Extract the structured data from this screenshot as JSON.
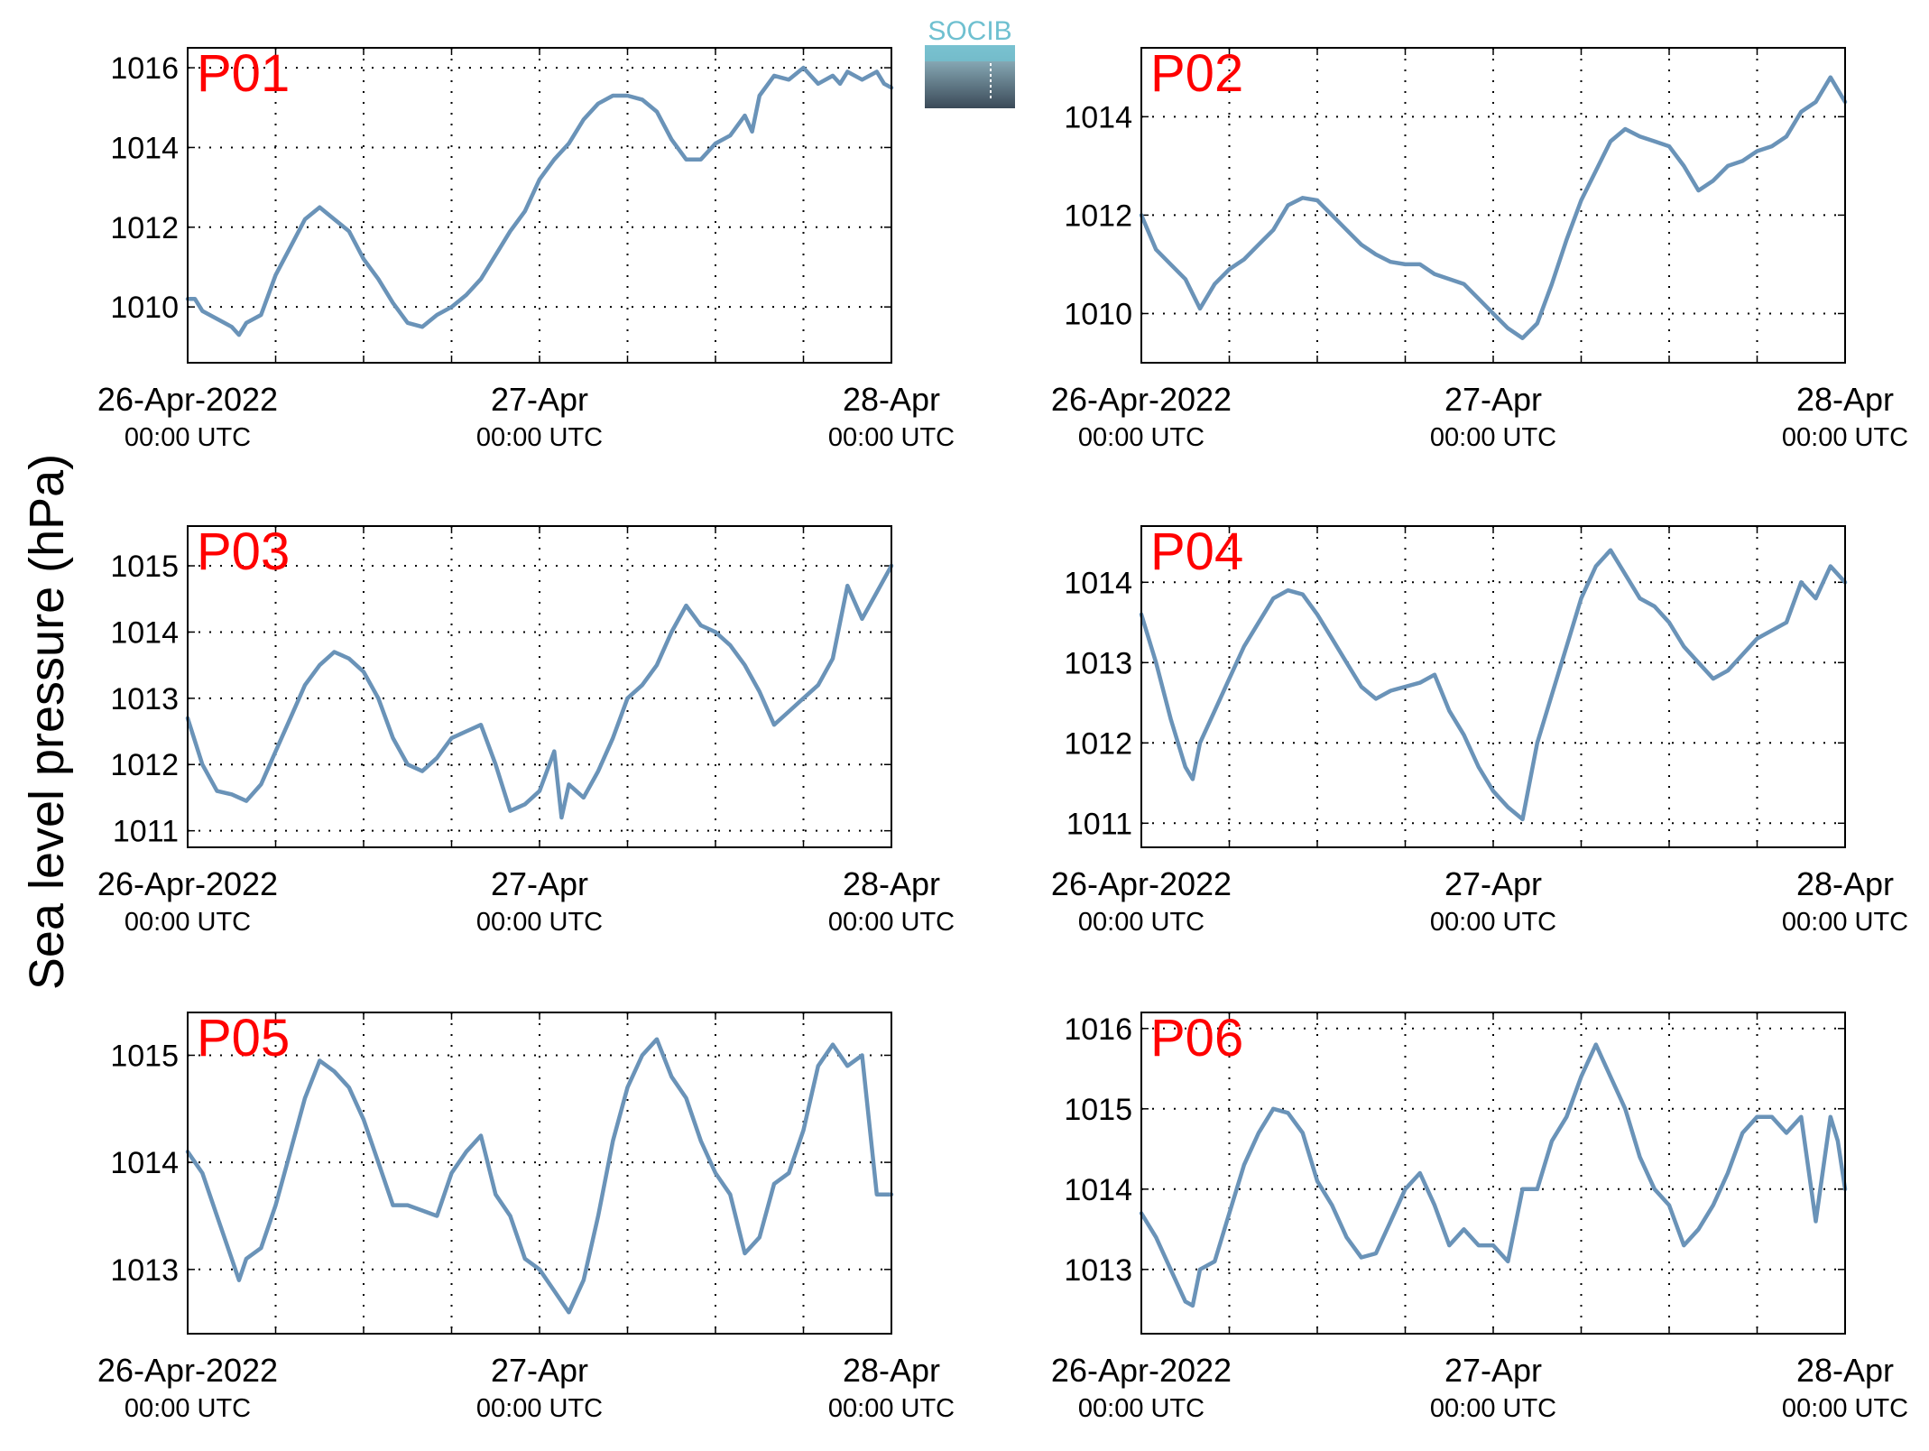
{
  "figure": {
    "ylabel": "Sea level pressure (hPa)",
    "logo_text": "SOCIB",
    "line_color": "#6a93b8",
    "label_color": "#ff0000"
  },
  "chart_data": [
    {
      "type": "line",
      "title": "P01",
      "x_ticks": [
        {
          "line1": "26-Apr-2022",
          "line2": "00:00 UTC"
        },
        {
          "line1": "27-Apr",
          "line2": "00:00 UTC"
        },
        {
          "line1": "28-Apr",
          "line2": "00:00 UTC"
        }
      ],
      "x_unit": "hours since first tick",
      "xlim": [
        0,
        48
      ],
      "ylim": [
        1008.6,
        1016.5
      ],
      "yticks": [
        1010,
        1012,
        1014,
        1016
      ],
      "grid": true,
      "series": [
        {
          "x": [
            0,
            0.5,
            1,
            2,
            3,
            3.5,
            4,
            5,
            6,
            7,
            8,
            9,
            10,
            11,
            12,
            13,
            14,
            15,
            16,
            17,
            18,
            19,
            20,
            21,
            22,
            23,
            24,
            25,
            26,
            27,
            28,
            29,
            30,
            31,
            32,
            33,
            34,
            35,
            36,
            37,
            38,
            38.5,
            39,
            40,
            41,
            42,
            43,
            44,
            44.5,
            45,
            46,
            47,
            47.5,
            48
          ],
          "y": [
            1010.2,
            1010.2,
            1009.9,
            1009.7,
            1009.5,
            1009.3,
            1009.6,
            1009.8,
            1010.8,
            1011.5,
            1012.2,
            1012.5,
            1012.2,
            1011.9,
            1011.2,
            1010.7,
            1010.1,
            1009.6,
            1009.5,
            1009.8,
            1010.0,
            1010.3,
            1010.7,
            1011.3,
            1011.9,
            1012.4,
            1013.2,
            1013.7,
            1014.1,
            1014.7,
            1015.1,
            1015.3,
            1015.3,
            1015.2,
            1014.9,
            1014.2,
            1013.7,
            1013.7,
            1014.1,
            1014.3,
            1014.8,
            1014.4,
            1015.3,
            1015.8,
            1015.7,
            1016.0,
            1015.6,
            1015.8,
            1015.6,
            1015.9,
            1015.7,
            1015.9,
            1015.6,
            1015.5
          ]
        }
      ]
    },
    {
      "type": "line",
      "title": "P02",
      "x_ticks": [
        {
          "line1": "26-Apr-2022",
          "line2": "00:00 UTC"
        },
        {
          "line1": "27-Apr",
          "line2": "00:00 UTC"
        },
        {
          "line1": "28-Apr",
          "line2": "00:00 UTC"
        }
      ],
      "x_unit": "hours since first tick",
      "xlim": [
        0,
        48
      ],
      "ylim": [
        1009.0,
        1015.4
      ],
      "yticks": [
        1010,
        1012,
        1014
      ],
      "grid": true,
      "series": [
        {
          "x": [
            0,
            1,
            2,
            3,
            4,
            5,
            6,
            7,
            8,
            9,
            10,
            11,
            12,
            13,
            14,
            15,
            16,
            17,
            18,
            19,
            20,
            21,
            22,
            23,
            24,
            25,
            26,
            27,
            28,
            29,
            30,
            31,
            32,
            33,
            34,
            35,
            36,
            37,
            38,
            39,
            40,
            41,
            42,
            43,
            44,
            45,
            46,
            47,
            48
          ],
          "y": [
            1012.0,
            1011.3,
            1011.0,
            1010.7,
            1010.1,
            1010.6,
            1010.9,
            1011.1,
            1011.4,
            1011.7,
            1012.2,
            1012.35,
            1012.3,
            1012.0,
            1011.7,
            1011.4,
            1011.2,
            1011.05,
            1011.0,
            1011.0,
            1010.8,
            1010.7,
            1010.6,
            1010.3,
            1010.0,
            1009.7,
            1009.5,
            1009.8,
            1010.6,
            1011.5,
            1012.3,
            1012.9,
            1013.5,
            1013.75,
            1013.6,
            1013.5,
            1013.4,
            1013.0,
            1012.5,
            1012.7,
            1013.0,
            1013.1,
            1013.3,
            1013.4,
            1013.6,
            1014.1,
            1014.3,
            1014.8,
            1014.3
          ]
        }
      ]
    },
    {
      "type": "line",
      "title": "P03",
      "x_ticks": [
        {
          "line1": "26-Apr-2022",
          "line2": "00:00 UTC"
        },
        {
          "line1": "27-Apr",
          "line2": "00:00 UTC"
        },
        {
          "line1": "28-Apr",
          "line2": "00:00 UTC"
        }
      ],
      "x_unit": "hours since first tick",
      "xlim": [
        0,
        48
      ],
      "ylim": [
        1010.75,
        1015.6
      ],
      "yticks": [
        1011,
        1012,
        1013,
        1014,
        1015
      ],
      "grid": true,
      "series": [
        {
          "x": [
            0,
            1,
            2,
            3,
            4,
            5,
            6,
            7,
            8,
            9,
            10,
            11,
            12,
            13,
            14,
            15,
            16,
            17,
            18,
            19,
            20,
            21,
            22,
            23,
            24,
            25,
            25.5,
            26,
            27,
            28,
            29,
            30,
            31,
            32,
            33,
            34,
            35,
            36,
            37,
            38,
            39,
            40,
            41,
            42,
            43,
            44,
            45,
            46,
            47,
            48
          ],
          "y": [
            1012.7,
            1012.0,
            1011.6,
            1011.55,
            1011.45,
            1011.7,
            1012.2,
            1012.7,
            1013.2,
            1013.5,
            1013.7,
            1013.6,
            1013.4,
            1013.0,
            1012.4,
            1012.0,
            1011.9,
            1012.1,
            1012.4,
            1012.5,
            1012.6,
            1012.0,
            1011.3,
            1011.4,
            1011.6,
            1012.2,
            1011.2,
            1011.7,
            1011.5,
            1011.9,
            1012.4,
            1013.0,
            1013.2,
            1013.5,
            1014.0,
            1014.4,
            1014.1,
            1014.0,
            1013.8,
            1013.5,
            1013.1,
            1012.6,
            1012.8,
            1013.0,
            1013.2,
            1013.6,
            1014.7,
            1014.2,
            1014.6,
            1015.0
          ]
        }
      ]
    },
    {
      "type": "line",
      "title": "P04",
      "x_ticks": [
        {
          "line1": "26-Apr-2022",
          "line2": "00:00 UTC"
        },
        {
          "line1": "27-Apr",
          "line2": "00:00 UTC"
        },
        {
          "line1": "28-Apr",
          "line2": "00:00 UTC"
        }
      ],
      "x_unit": "hours since first tick",
      "xlim": [
        0,
        48
      ],
      "ylim": [
        1010.7,
        1014.7
      ],
      "yticks": [
        1011,
        1012,
        1013,
        1014
      ],
      "grid": true,
      "series": [
        {
          "x": [
            0,
            1,
            2,
            3,
            3.5,
            4,
            5,
            6,
            7,
            8,
            9,
            10,
            11,
            12,
            13,
            14,
            15,
            16,
            17,
            18,
            19,
            20,
            21,
            22,
            23,
            24,
            25,
            26,
            27,
            28,
            29,
            30,
            31,
            32,
            33,
            34,
            35,
            36,
            37,
            38,
            39,
            40,
            41,
            42,
            43,
            44,
            45,
            46,
            47,
            48
          ],
          "y": [
            1013.6,
            1013.0,
            1012.3,
            1011.7,
            1011.55,
            1012.0,
            1012.4,
            1012.8,
            1013.2,
            1013.5,
            1013.8,
            1013.9,
            1013.85,
            1013.6,
            1013.3,
            1013.0,
            1012.7,
            1012.55,
            1012.65,
            1012.7,
            1012.75,
            1012.85,
            1012.4,
            1012.1,
            1011.7,
            1011.4,
            1011.2,
            1011.05,
            1012.0,
            1012.6,
            1013.2,
            1013.8,
            1014.2,
            1014.4,
            1014.1,
            1013.8,
            1013.7,
            1013.5,
            1013.2,
            1013.0,
            1012.8,
            1012.9,
            1013.1,
            1013.3,
            1013.4,
            1013.5,
            1014.0,
            1013.8,
            1014.2,
            1014.0
          ]
        }
      ]
    },
    {
      "type": "line",
      "title": "P05",
      "x_ticks": [
        {
          "line1": "26-Apr-2022",
          "line2": "00:00 UTC"
        },
        {
          "line1": "27-Apr",
          "line2": "00:00 UTC"
        },
        {
          "line1": "28-Apr",
          "line2": "00:00 UTC"
        }
      ],
      "x_unit": "hours since first tick",
      "xlim": [
        0,
        48
      ],
      "ylim": [
        1012.4,
        1015.4
      ],
      "yticks": [
        1013,
        1014,
        1015
      ],
      "grid": true,
      "series": [
        {
          "x": [
            0,
            1,
            2,
            3,
            3.5,
            4,
            5,
            6,
            7,
            8,
            9,
            10,
            11,
            12,
            13,
            14,
            15,
            16,
            17,
            18,
            19,
            20,
            21,
            22,
            23,
            24,
            25,
            26,
            27,
            28,
            29,
            30,
            31,
            32,
            33,
            34,
            35,
            36,
            37,
            38,
            39,
            40,
            41,
            42,
            43,
            44,
            45,
            46,
            47,
            48
          ],
          "y": [
            1014.1,
            1013.9,
            1013.5,
            1013.1,
            1012.9,
            1013.1,
            1013.2,
            1013.6,
            1014.1,
            1014.6,
            1014.95,
            1014.85,
            1014.7,
            1014.4,
            1014.0,
            1013.6,
            1013.6,
            1013.55,
            1013.5,
            1013.9,
            1014.1,
            1014.25,
            1013.7,
            1013.5,
            1013.1,
            1013.0,
            1012.8,
            1012.6,
            1012.9,
            1013.5,
            1014.2,
            1014.7,
            1015.0,
            1015.15,
            1014.8,
            1014.6,
            1014.2,
            1013.9,
            1013.7,
            1013.15,
            1013.3,
            1013.8,
            1013.9,
            1014.3,
            1014.9,
            1015.1,
            1014.9,
            1015.0,
            1013.7,
            1013.7
          ]
        }
      ]
    },
    {
      "type": "line",
      "title": "P06",
      "x_ticks": [
        {
          "line1": "26-Apr-2022",
          "line2": "00:00 UTC"
        },
        {
          "line1": "27-Apr",
          "line2": "00:00 UTC"
        },
        {
          "line1": "28-Apr",
          "line2": "00:00 UTC"
        }
      ],
      "x_unit": "hours since first tick",
      "xlim": [
        0,
        48
      ],
      "ylim": [
        1012.2,
        1016.2
      ],
      "yticks": [
        1013,
        1014,
        1015,
        1016
      ],
      "grid": true,
      "series": [
        {
          "x": [
            0,
            1,
            2,
            3,
            3.5,
            4,
            5,
            6,
            7,
            8,
            9,
            10,
            11,
            12,
            13,
            14,
            15,
            16,
            17,
            18,
            19,
            20,
            21,
            22,
            23,
            24,
            25,
            26,
            27,
            28,
            29,
            30,
            31,
            32,
            33,
            34,
            35,
            36,
            37,
            38,
            39,
            40,
            41,
            42,
            43,
            44,
            45,
            46,
            47,
            47.5,
            48
          ],
          "y": [
            1013.7,
            1013.4,
            1013.0,
            1012.6,
            1012.55,
            1013.0,
            1013.1,
            1013.7,
            1014.3,
            1014.7,
            1015.0,
            1014.95,
            1014.7,
            1014.1,
            1013.8,
            1013.4,
            1013.15,
            1013.2,
            1013.6,
            1014.0,
            1014.2,
            1013.8,
            1013.3,
            1013.5,
            1013.3,
            1013.3,
            1013.1,
            1014.0,
            1014.0,
            1014.6,
            1014.9,
            1015.4,
            1015.8,
            1015.4,
            1015.0,
            1014.4,
            1014.0,
            1013.8,
            1013.3,
            1013.5,
            1013.8,
            1014.2,
            1014.7,
            1014.9,
            1014.9,
            1014.7,
            1014.9,
            1013.6,
            1014.9,
            1014.6,
            1014.0
          ]
        }
      ]
    }
  ]
}
